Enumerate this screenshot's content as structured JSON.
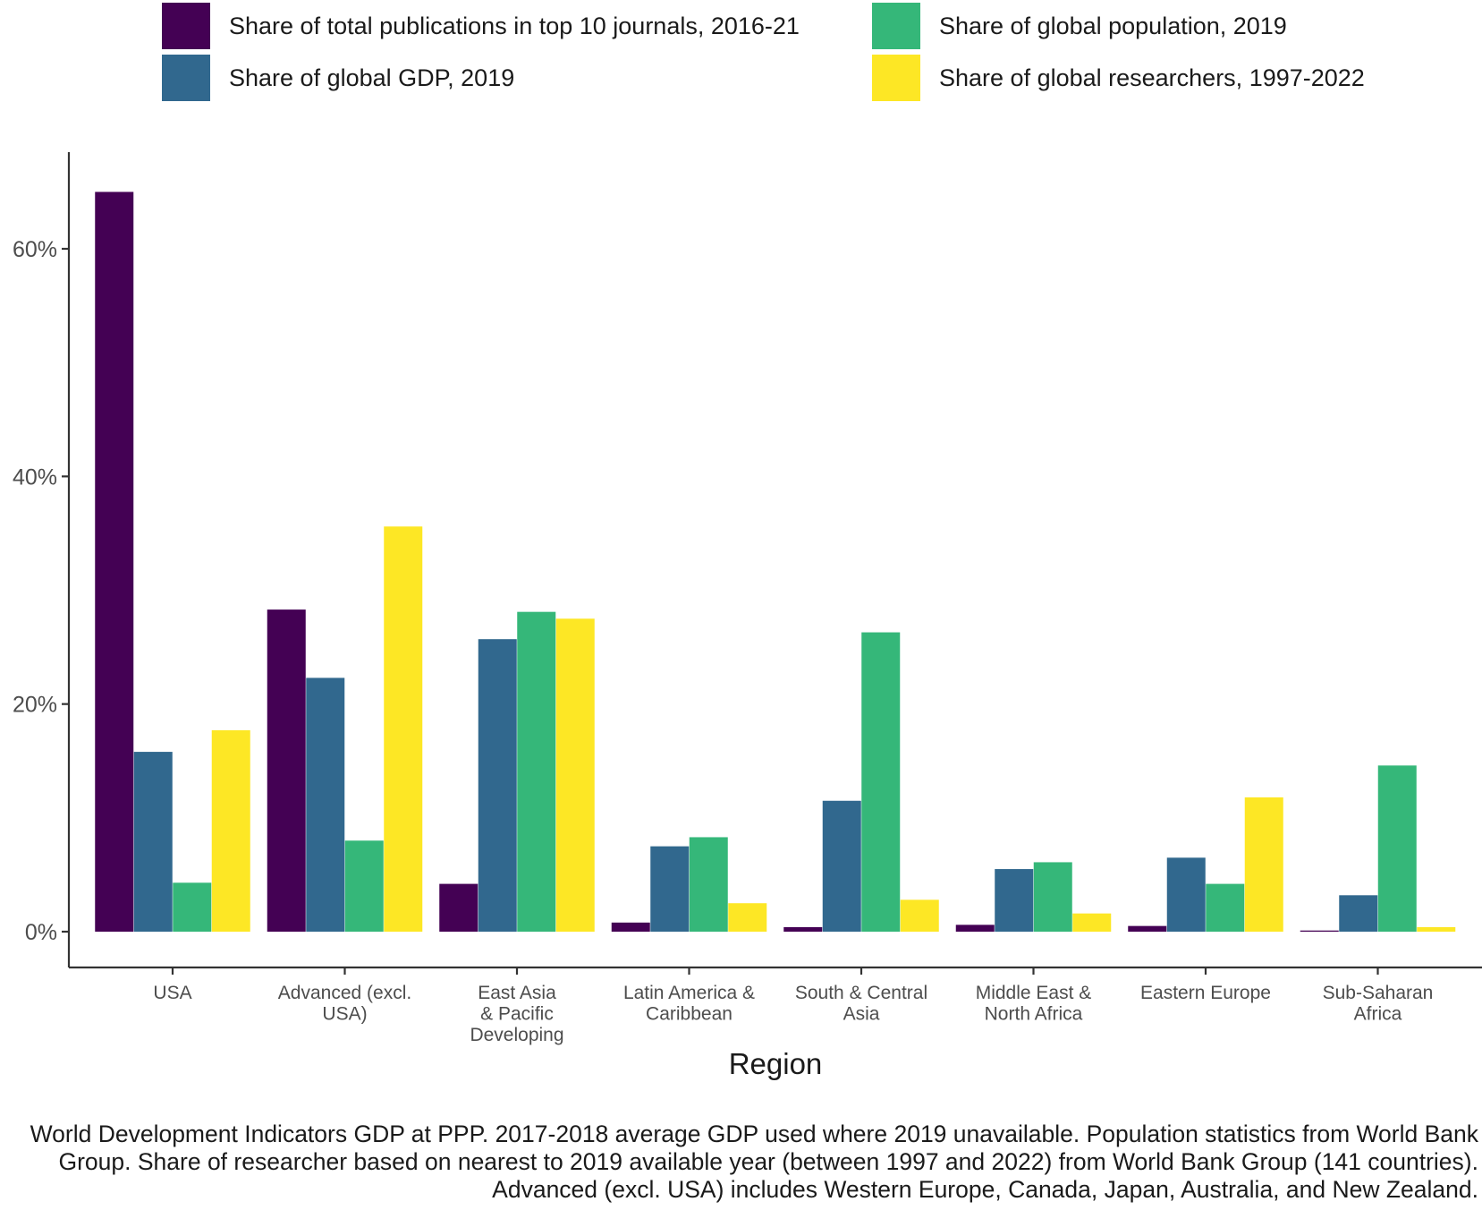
{
  "chart_data": {
    "type": "bar",
    "categories": [
      "USA",
      "Advanced (excl. USA)",
      "East Asia & Pacific Developing",
      "Latin America & Caribbean",
      "South & Central Asia",
      "Middle East & North Africa",
      "Eastern Europe",
      "Sub-Saharan Africa"
    ],
    "category_label_lines": [
      [
        "USA"
      ],
      [
        "Advanced (excl.",
        "USA)"
      ],
      [
        "East Asia",
        "& Pacific",
        "Developing"
      ],
      [
        "Latin America &",
        "Caribbean"
      ],
      [
        "South & Central",
        "Asia"
      ],
      [
        "Middle East &",
        "North Africa"
      ],
      [
        "Eastern Europe"
      ],
      [
        "Sub-Saharan",
        "Africa"
      ]
    ],
    "series": [
      {
        "name": "Share of total publications in top 10 journals, 2016-21",
        "color": "#440154",
        "values": [
          65.0,
          28.3,
          4.2,
          0.8,
          0.4,
          0.6,
          0.5,
          0.1
        ]
      },
      {
        "name": "Share of global GDP, 2019",
        "color": "#31688e",
        "values": [
          15.8,
          22.3,
          25.7,
          7.5,
          11.5,
          5.5,
          6.5,
          3.2
        ]
      },
      {
        "name": "Share of global population, 2019",
        "color": "#35b779",
        "values": [
          4.3,
          8.0,
          28.1,
          8.3,
          26.3,
          6.1,
          4.2,
          14.6
        ]
      },
      {
        "name": "Share of global researchers, 1997-2022",
        "color": "#fde725",
        "values": [
          17.7,
          35.6,
          27.5,
          2.5,
          2.8,
          1.6,
          11.8,
          0.4
        ]
      }
    ],
    "xlabel": "Region",
    "ylabel": "",
    "y_ticks": [
      "0%",
      "20%",
      "40%",
      "60%"
    ],
    "y_tick_values": [
      0,
      20,
      40,
      60
    ],
    "ylim": [
      -3.2,
      68.5
    ],
    "grid": false,
    "legend_position": "top"
  },
  "caption": "World Development Indicators GDP at PPP. 2017-2018 average GDP used where 2019 unavailable. Population statistics from World Bank Group. Share of researcher based on nearest to 2019 available year (between 1997 and 2022) from World Bank Group (141 countries). Advanced (excl. USA) includes Western Europe, Canada, Japan, Australia, and New Zealand.",
  "colors": {
    "axis": "#333333",
    "tick_label": "#4d4d4d",
    "text": "#1a1a1a"
  }
}
